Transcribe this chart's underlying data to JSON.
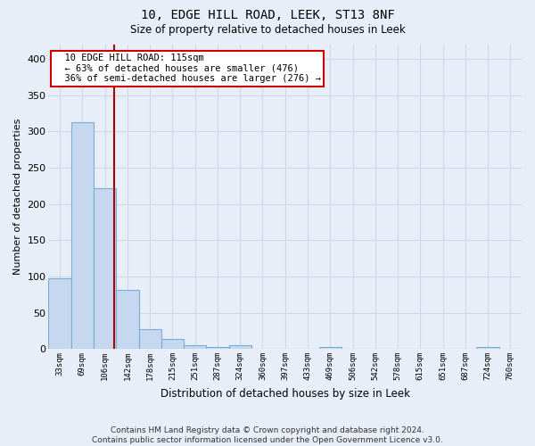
{
  "title": "10, EDGE HILL ROAD, LEEK, ST13 8NF",
  "subtitle": "Size of property relative to detached houses in Leek",
  "xlabel": "Distribution of detached houses by size in Leek",
  "ylabel": "Number of detached properties",
  "bin_labels": [
    "33sqm",
    "69sqm",
    "106sqm",
    "142sqm",
    "178sqm",
    "215sqm",
    "251sqm",
    "287sqm",
    "324sqm",
    "360sqm",
    "397sqm",
    "433sqm",
    "469sqm",
    "506sqm",
    "542sqm",
    "578sqm",
    "615sqm",
    "651sqm",
    "687sqm",
    "724sqm",
    "760sqm"
  ],
  "bar_heights": [
    98,
    313,
    222,
    81,
    27,
    14,
    5,
    3,
    5,
    0,
    0,
    0,
    3,
    0,
    0,
    0,
    0,
    0,
    0,
    3,
    0
  ],
  "bar_color": "#c5d8ef",
  "bar_edge_color": "#7aadd4",
  "background_color": "#e8eef8",
  "grid_color": "#d0d8e8",
  "property_line_x": 2.42,
  "annotation_text": "  10 EDGE HILL ROAD: 115sqm\n  ← 63% of detached houses are smaller (476)\n  36% of semi-detached houses are larger (276) →",
  "annotation_box_color": "#ffffff",
  "annotation_box_edge": "#cc0000",
  "red_line_color": "#aa0000",
  "footer_line1": "Contains HM Land Registry data © Crown copyright and database right 2024.",
  "footer_line2": "Contains public sector information licensed under the Open Government Licence v3.0.",
  "ylim": [
    0,
    420
  ],
  "yticks": [
    0,
    50,
    100,
    150,
    200,
    250,
    300,
    350,
    400
  ]
}
